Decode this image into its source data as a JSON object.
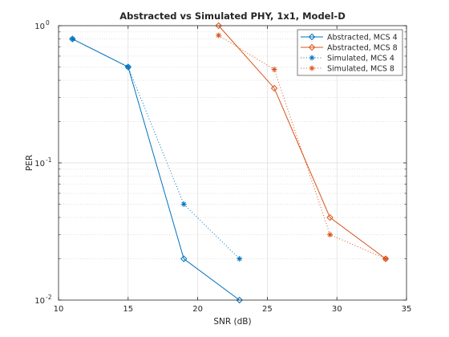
{
  "chart_data": {
    "type": "line",
    "title": "Abstracted vs Simulated PHY, 1x1, Model-D",
    "xlabel": "SNR (dB)",
    "ylabel": "PER",
    "xlim": [
      10,
      35
    ],
    "ylim": [
      0.01,
      1
    ],
    "yscale": "log",
    "grid": true,
    "legend_position": "top-right",
    "xticks": [
      "10",
      "15",
      "20",
      "25",
      "30",
      "35"
    ],
    "yticks": [
      {
        "value": 1,
        "base": "10",
        "exp": "0"
      },
      {
        "value": 0.1,
        "base": "10",
        "exp": "-1"
      },
      {
        "value": 0.01,
        "base": "10",
        "exp": "-2"
      }
    ],
    "series": [
      {
        "name": "Abstracted, MCS 4",
        "color": "#0072BD",
        "line": "solid",
        "marker": "diamond",
        "x": [
          11,
          15,
          19,
          23
        ],
        "y": [
          0.8,
          0.5,
          0.02,
          0.01
        ]
      },
      {
        "name": "Abstracted, MCS 8",
        "color": "#D95319",
        "line": "solid",
        "marker": "diamond",
        "x": [
          21.5,
          25.5,
          29.5,
          33.5
        ],
        "y": [
          1.0,
          0.35,
          0.04,
          0.02
        ]
      },
      {
        "name": "Simulated, MCS 4",
        "color": "#0072BD",
        "line": "dotted",
        "marker": "asterisk",
        "x": [
          11,
          15,
          19,
          23
        ],
        "y": [
          0.8,
          0.5,
          0.05,
          0.02
        ]
      },
      {
        "name": "Simulated, MCS 8",
        "color": "#D95319",
        "line": "dotted",
        "marker": "asterisk",
        "x": [
          21.5,
          25.5,
          29.5,
          33.5
        ],
        "y": [
          0.85,
          0.48,
          0.03,
          0.02
        ]
      }
    ]
  }
}
